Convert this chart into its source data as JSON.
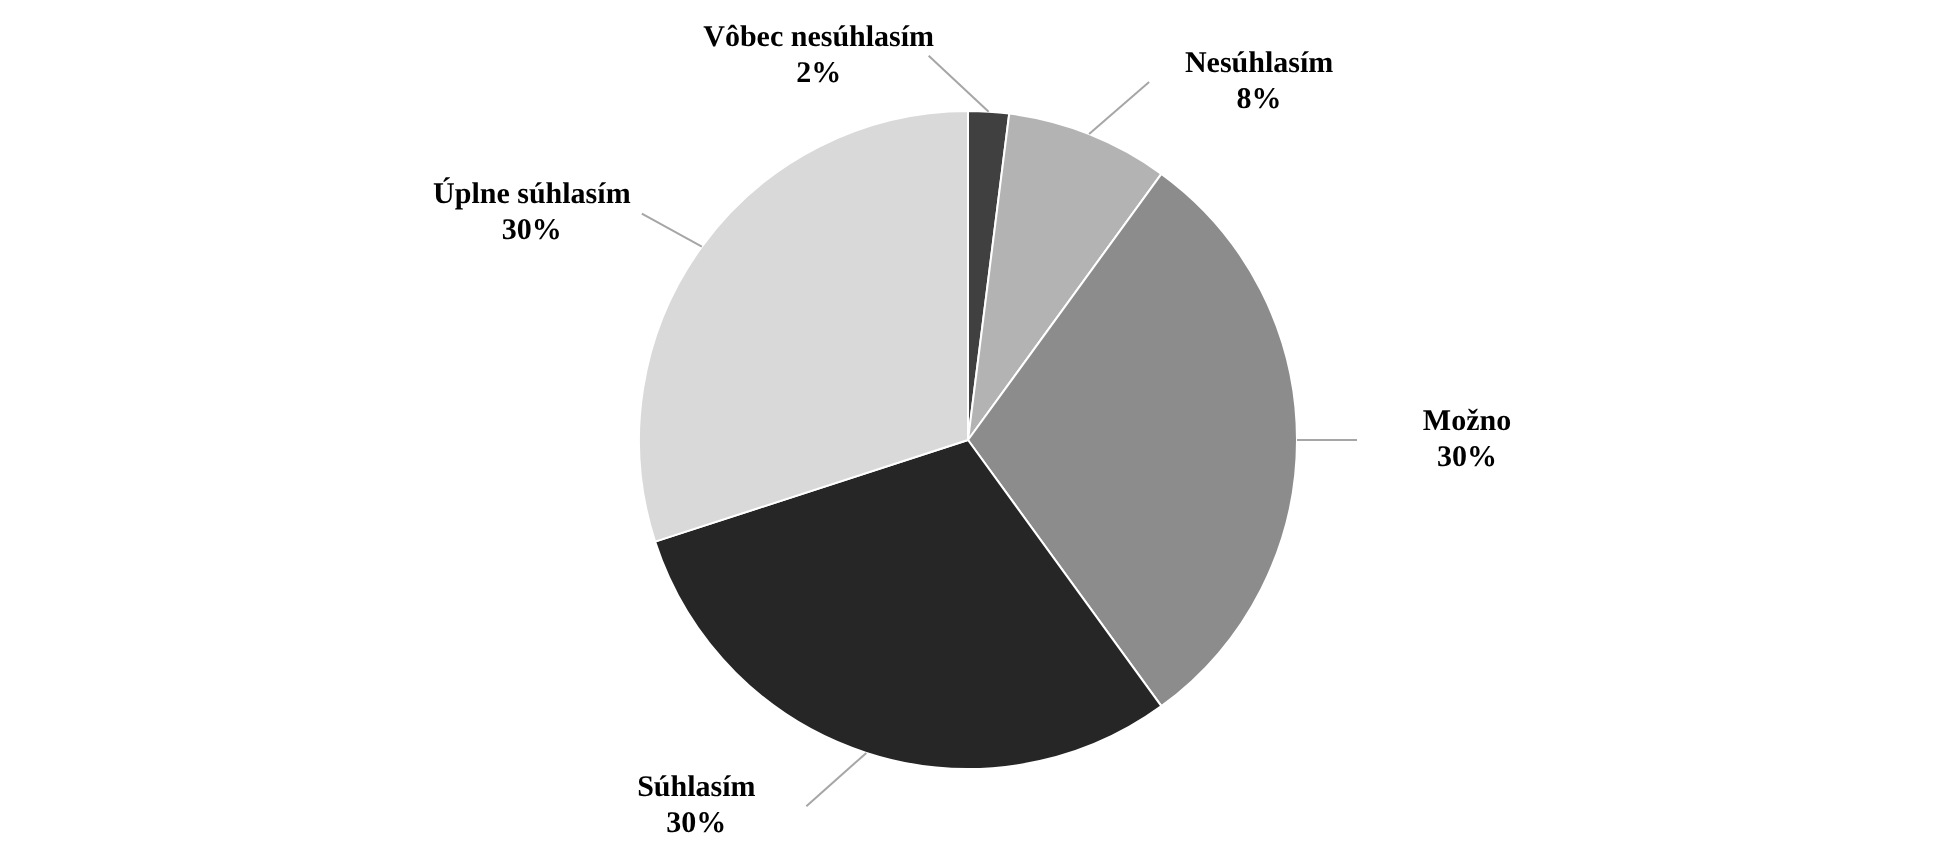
{
  "chart_data": {
    "type": "pie",
    "categories": [
      "Vôbec nesúhlasím",
      "Nesúhlasím",
      "Možno",
      "Súhlasím",
      "Úplne súhlasím"
    ],
    "values": [
      2,
      8,
      30,
      30,
      30
    ],
    "colors": [
      "#404040",
      "#b3b3b3",
      "#8c8c8c",
      "#262626",
      "#d9d9d9"
    ],
    "value_labels": [
      "2%",
      "8%",
      "30%",
      "30%",
      "30%"
    ],
    "legend": false
  }
}
